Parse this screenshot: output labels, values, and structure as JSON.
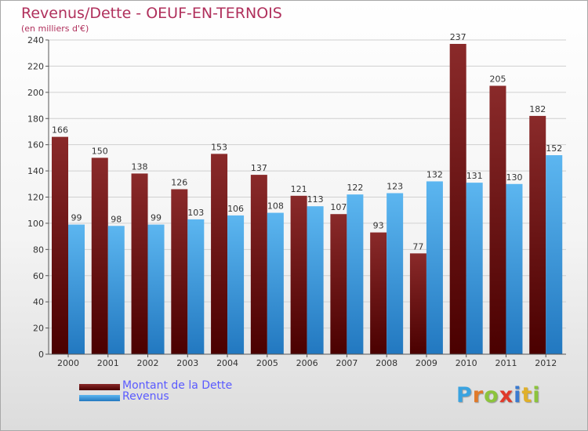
{
  "header": {
    "title": "Revenus/Dette - OEUF-EN-TERNOIS",
    "subtitle": "(en milliers d'€)"
  },
  "brand": {
    "letters": [
      "P",
      "r",
      "o",
      "x",
      "i",
      "t",
      "i"
    ],
    "colors": [
      "#3aa3e0",
      "#e07a2a",
      "#8cc43c",
      "#e03a2a",
      "#3a7ad0",
      "#e0b02a",
      "#8cc43c"
    ]
  },
  "chart_data": {
    "type": "bar",
    "title": "Revenus/Dette - OEUF-EN-TERNOIS",
    "subtitle": "(en milliers d'€)",
    "categories": [
      "2000",
      "2001",
      "2002",
      "2003",
      "2004",
      "2005",
      "2006",
      "2007",
      "2008",
      "2009",
      "2010",
      "2011",
      "2012"
    ],
    "series": [
      {
        "name": "Montant de la Dette",
        "color": "#7a1818",
        "values": [
          166,
          150,
          138,
          126,
          153,
          137,
          121,
          107,
          93,
          77,
          237,
          205,
          182
        ]
      },
      {
        "name": "Revenus",
        "color": "#3e9de0",
        "values": [
          99,
          98,
          99,
          103,
          106,
          108,
          113,
          122,
          123,
          132,
          131,
          130,
          152
        ]
      }
    ],
    "ylim": [
      0,
      240
    ],
    "yticks": [
      0,
      20,
      40,
      60,
      80,
      100,
      120,
      140,
      160,
      180,
      200,
      220,
      240
    ],
    "grid": true,
    "legend_position": "bottom-left"
  }
}
